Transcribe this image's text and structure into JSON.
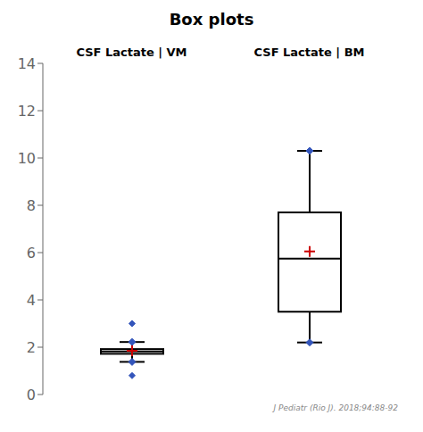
{
  "chart_data": {
    "type": "box",
    "title": "Box plots",
    "categories": [
      "CSF Lactate | VM",
      "CSF Lactate | BM"
    ],
    "series": [
      {
        "type": "box",
        "color": "#3355bb",
        "marker": "diamond",
        "values": [
          {
            "q1": 1.72,
            "median": 1.82,
            "q3": 1.92,
            "whisker_low": 1.38,
            "whisker_high": 2.22
          },
          {
            "q1": 3.5,
            "median": 5.75,
            "q3": 7.7,
            "whisker_low": 2.2,
            "whisker_high": 10.3
          }
        ]
      },
      {
        "type": "scatter",
        "color": "#cc0000",
        "marker": "plus",
        "values": [
          1.85,
          6.05
        ]
      },
      {
        "type": "scatter",
        "color": "#3355bb",
        "marker": "diamond",
        "values": [
          [
            0.8,
            3.0
          ],
          []
        ]
      }
    ],
    "ylim": [
      0,
      14
    ],
    "yticks": [
      0,
      2,
      4,
      6,
      8,
      10,
      12,
      14
    ],
    "annotations": [
      "J Pediatr (Rio J). 2018;94:88-92"
    ]
  }
}
